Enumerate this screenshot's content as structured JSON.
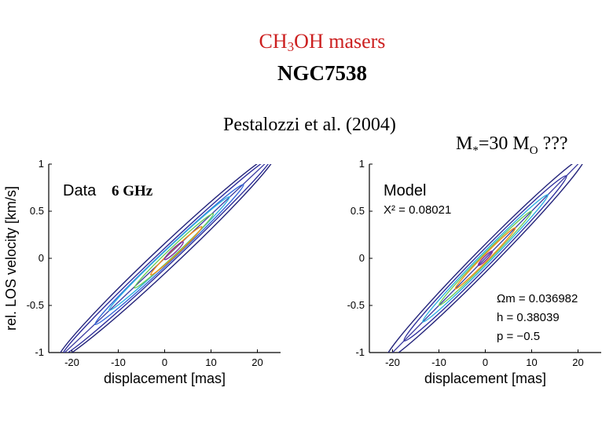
{
  "header": {
    "title_prefix": "CH",
    "title_sub": "3",
    "title_suffix": "OH masers",
    "subtitle": "NGC7538",
    "reference": "Pestalozzi et al. (2004)",
    "mass_prefix": "M",
    "mass_star": "*",
    "mass_value": "=30 M",
    "mass_sun": "O",
    "mass_suffix": " ???"
  },
  "colors": {
    "title": "#cc2020",
    "axis": "#000000"
  },
  "chart_data": [
    {
      "type": "contour",
      "label": "Data",
      "label_extra": "6 GHz",
      "xlabel": "displacement [mas]",
      "ylabel": "rel. LOS velocity [km/s]",
      "xlim": [
        -25,
        25
      ],
      "ylim": [
        -1,
        1
      ],
      "xticks": [
        "-20",
        "-10",
        "0",
        "10",
        "20"
      ],
      "yticks": [
        "-1",
        "-0.5",
        "0",
        "0.5",
        "1"
      ],
      "fit_line": {
        "slope": 0.0464,
        "intercept": 0.0,
        "color": "#3a3aa0"
      },
      "contours": [
        {
          "cx": 0.5,
          "cy": 0.02,
          "rx": 23.5,
          "ry": 0.16,
          "color": "#23237a"
        },
        {
          "cx": 0.5,
          "cy": 0.02,
          "rx": 22.5,
          "ry": 0.11,
          "color": "#2d2d9c"
        },
        {
          "cx": 1.0,
          "cy": 0.04,
          "rx": 16.0,
          "ry": 0.085,
          "color": "#3366d8"
        },
        {
          "cx": 1.0,
          "cy": 0.05,
          "rx": 13.0,
          "ry": 0.07,
          "color": "#30b0e0"
        },
        {
          "cx": 2.0,
          "cy": 0.08,
          "rx": 8.5,
          "ry": 0.055,
          "color": "#6ccc5c"
        },
        {
          "cx": 2.5,
          "cy": 0.08,
          "rx": 5.5,
          "ry": 0.045,
          "color": "#f08c18"
        },
        {
          "cx": 2.0,
          "cy": 0.08,
          "rx": 2.0,
          "ry": 0.03,
          "color": "#8030a0"
        }
      ],
      "params": []
    },
    {
      "type": "contour",
      "label": "Model",
      "label_extra": "",
      "xlabel": "displacement [mas]",
      "ylabel": "",
      "xlim": [
        -25,
        25
      ],
      "ylim": [
        -1,
        1
      ],
      "xticks": [
        "-20",
        "-10",
        "0",
        "10",
        "20"
      ],
      "yticks": [
        "-1",
        "-0.5",
        "0",
        "0.5",
        "1"
      ],
      "fit_line": {
        "slope": 0.05,
        "intercept": 0.0,
        "color": "#3a3aa0"
      },
      "contours": [
        {
          "cx": 0.0,
          "cy": 0.0,
          "rx": 21.5,
          "ry": 0.15,
          "color": "#23237a"
        },
        {
          "cx": 0.0,
          "cy": 0.0,
          "rx": 17.5,
          "ry": 0.11,
          "color": "#2d2d9c"
        },
        {
          "cx": 0.0,
          "cy": 0.0,
          "rx": 13.5,
          "ry": 0.08,
          "color": "#30b0e0"
        },
        {
          "cx": 0.0,
          "cy": 0.0,
          "rx": 10.0,
          "ry": 0.06,
          "color": "#6ccc5c"
        },
        {
          "cx": 0.0,
          "cy": 0.0,
          "rx": 6.5,
          "ry": 0.045,
          "color": "#f08c18"
        },
        {
          "cx": 0.0,
          "cy": 0.0,
          "rx": 1.5,
          "ry": 0.025,
          "color": "#8030a0"
        }
      ],
      "params": [
        "X² = 0.08021",
        "Ωm = 0.036982",
        "h = 0.38039",
        "p = −0.5"
      ]
    }
  ]
}
